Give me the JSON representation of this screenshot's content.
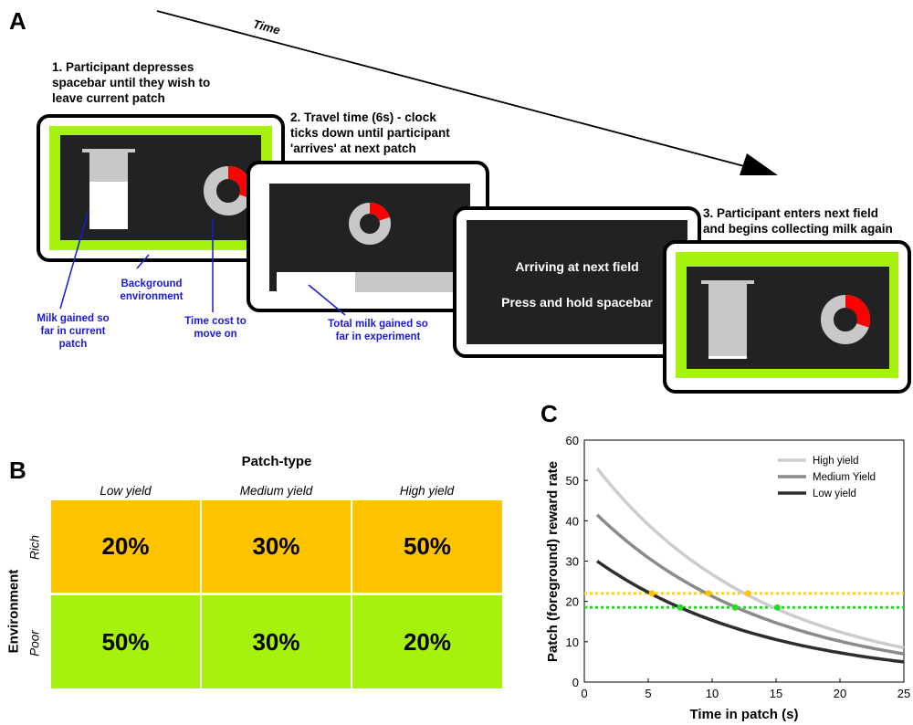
{
  "panels": {
    "a": "A",
    "b": "B",
    "c": "C"
  },
  "colors": {
    "green": "#a6f20f",
    "orange": "#ffc400",
    "dark": "#222222",
    "red": "#ff0000",
    "ring": "#c8c8c8",
    "annotation": "#1a1ad6",
    "yellow_dotted": "#ffd21a",
    "green_dotted": "#22dd22"
  },
  "timeline": {
    "label": "Time"
  },
  "steps": {
    "s1": [
      "1. Participant depresses",
      "spacebar until they wish to",
      "leave current patch"
    ],
    "s2": [
      "2. Travel time (6s) - clock",
      "ticks down until participant",
      "'arrives' at next patch"
    ],
    "s3": [
      "3. Participant enters next field",
      "and begins collecting milk again"
    ]
  },
  "annotations": {
    "background": [
      "Background",
      "environment"
    ],
    "milk_patch": [
      "Milk gained so",
      "far in current",
      "patch"
    ],
    "time_cost": [
      "Time cost to",
      "move on"
    ],
    "total_milk": [
      "Total milk gained so",
      "far in experiment"
    ]
  },
  "screen3": {
    "line1": "Arriving at next field",
    "line2": "Press and hold spacebar"
  },
  "table": {
    "title": "Patch-type",
    "row_axis": "Environment",
    "columns": [
      "Low yield",
      "Medium yield",
      "High yield"
    ],
    "rows": [
      {
        "label": "Rich",
        "cells": [
          "20%",
          "30%",
          "50%"
        ]
      },
      {
        "label": "Poor",
        "cells": [
          "50%",
          "30%",
          "20%"
        ]
      }
    ]
  },
  "chart_data": {
    "type": "line",
    "xlabel": "Time in patch (s)",
    "ylabel": "Patch (foreground) reward rate",
    "xlim": [
      0,
      25
    ],
    "ylim": [
      0,
      60
    ],
    "xticks": [
      "0",
      "5",
      "10",
      "15",
      "20",
      "25"
    ],
    "yticks": [
      "0",
      "10",
      "20",
      "30",
      "40",
      "50",
      "60"
    ],
    "legend_position": "top-right",
    "series": [
      {
        "name": "High yield",
        "color": "#cccccc",
        "start": 53,
        "end": 8.5
      },
      {
        "name": "Medium Yield",
        "color": "#8a8a8a",
        "start": 41.5,
        "end": 7
      },
      {
        "name": "Low yield",
        "color": "#2e2e2e",
        "start": 30,
        "end": 5
      }
    ],
    "x_range": [
      1,
      25
    ],
    "hlines": [
      {
        "y": 22,
        "color": "#ffd21a"
      },
      {
        "y": 18.5,
        "color": "#22dd22"
      }
    ],
    "points": [
      {
        "x": 5.3,
        "y": 22,
        "color": "#ffc400"
      },
      {
        "x": 9.7,
        "y": 22,
        "color": "#ffc400"
      },
      {
        "x": 12.8,
        "y": 22,
        "color": "#ffc400"
      },
      {
        "x": 7.5,
        "y": 18.5,
        "color": "#22dd22"
      },
      {
        "x": 11.8,
        "y": 18.5,
        "color": "#22dd22"
      },
      {
        "x": 15.1,
        "y": 18.5,
        "color": "#22dd22"
      }
    ]
  }
}
